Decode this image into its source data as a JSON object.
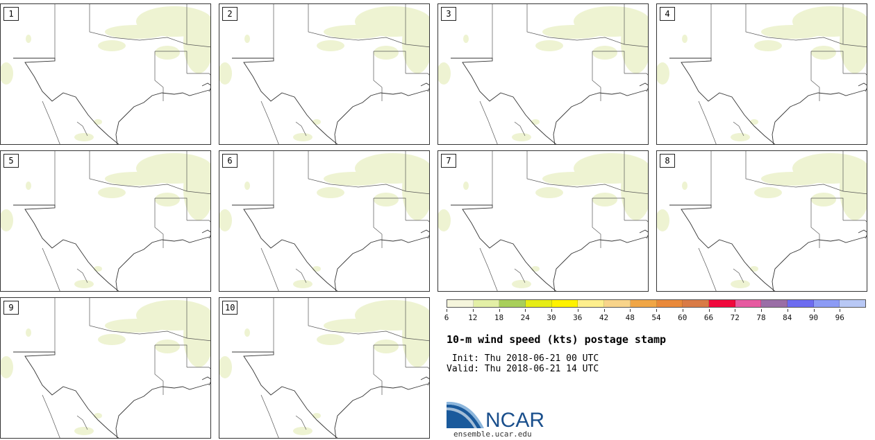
{
  "panels": [
    {
      "label": "1"
    },
    {
      "label": "2"
    },
    {
      "label": "3"
    },
    {
      "label": "4"
    },
    {
      "label": "5"
    },
    {
      "label": "6"
    },
    {
      "label": "7"
    },
    {
      "label": "8"
    },
    {
      "label": "9"
    },
    {
      "label": "10"
    }
  ],
  "colorbar": {
    "ticks": [
      "6",
      "12",
      "18",
      "24",
      "30",
      "36",
      "42",
      "48",
      "54",
      "60",
      "66",
      "72",
      "78",
      "84",
      "90",
      "96"
    ],
    "colors": [
      "#f5f5dc",
      "#e3efa6",
      "#a8cf5a",
      "#e6ec16",
      "#fff200",
      "#fdee8c",
      "#f8d48a",
      "#f0a646",
      "#e9893a",
      "#d97b46",
      "#f0083c",
      "#e65aa0",
      "#9a6ea6",
      "#6d6cf0",
      "#8c9bf5",
      "#b8c8f5"
    ]
  },
  "title": "10-m wind speed (kts) postage stamp",
  "init_line": " Init: Thu 2018-06-21 00 UTC",
  "valid_line": "Valid: Thu 2018-06-21 14 UTC",
  "logo": {
    "text": "NCAR",
    "url": "ensemble.ucar.edu",
    "brand_color": "#1a4f8c"
  },
  "map_colors": {
    "shade": "#eef3d2",
    "border": "#333333",
    "state_line": "#555555"
  }
}
